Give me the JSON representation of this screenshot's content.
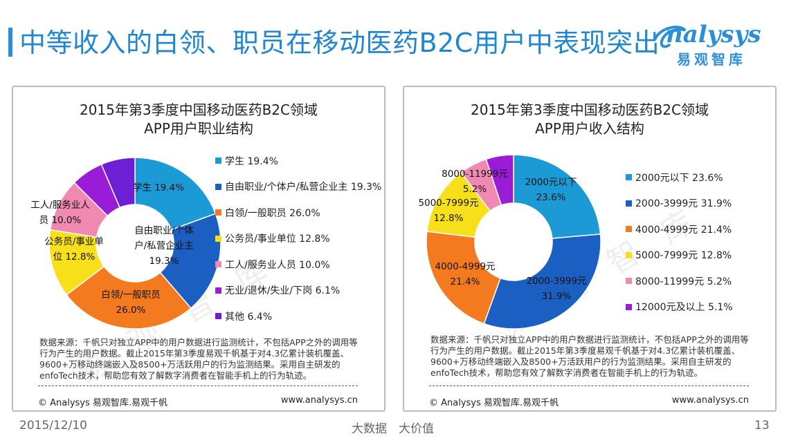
{
  "header": {
    "title": "中等收入的白领、职员在移动医药B2C用户中表现突出",
    "logo_word": "nalysys",
    "logo_cn": "易观智库"
  },
  "colors": {
    "c1": "#1c9ad6",
    "c2": "#1a5fc1",
    "c3": "#f47a20",
    "c4": "#f7e01a",
    "c5": "#f08ab3",
    "c6": "#9a1cd6",
    "c7": "#6d1fd6"
  },
  "chart_data": [
    {
      "type": "pie",
      "title_line1": "2015年第3季度中国移动医药B2C领域",
      "title_line2": "APP用户职业结构",
      "categories": [
        "学生",
        "自由职业/个体户/私营企业主",
        "白领/一般职员",
        "公务员/事业单位",
        "工人/服务业人员",
        "无业/退休/失业/下岗",
        "其他"
      ],
      "values": [
        19.4,
        19.3,
        26.0,
        12.8,
        10.0,
        6.1,
        6.4
      ],
      "legend": [
        "学生 19.4%",
        "自由职业/个体户/私营企业主 19.3%",
        "白领/一般职员 26.0%",
        "公务员/事业单位 12.8%",
        "工人/服务业人员 10.0%",
        "无业/退休/失业/下岗 6.1%",
        "其他 6.4%"
      ],
      "slice_labels": [
        [
          "学生 19.4%"
        ],
        [
          "自由职业/个体",
          "户/私营企业主",
          "19.3%"
        ],
        [
          "白领/一般职员",
          "26.0%"
        ],
        [
          "公务员/事业单",
          "位 12.8%"
        ],
        [
          "工人/服务业人",
          "员 10.0%"
        ],
        [],
        []
      ],
      "legend_position": "right"
    },
    {
      "type": "pie",
      "title_line1": "2015年第3季度中国移动医药B2C领域",
      "title_line2": "APP用户收入结构",
      "categories": [
        "2000元以下",
        "2000-3999元",
        "4000-4999元",
        "5000-7999元",
        "8000-11999元",
        "12000元及以上"
      ],
      "values": [
        23.6,
        31.9,
        21.4,
        12.8,
        5.2,
        5.1
      ],
      "legend": [
        "2000元以下 23.6%",
        "2000-3999元 31.9%",
        "4000-4999元 21.4%",
        "5000-7999元 12.8%",
        "8000-11999元 5.2%",
        "12000元及以上 5.1%"
      ],
      "slice_labels": [
        [
          "2000元以下",
          "23.6%"
        ],
        [
          "2000-3999元",
          "31.9%"
        ],
        [
          "4000-4999元",
          "21.4%"
        ],
        [
          "5000-7999元",
          "12.8%"
        ],
        [
          "8000-11999元",
          "5.2%"
        ],
        []
      ],
      "legend_position": "right"
    }
  ],
  "note": "数据来源：千帆只对独立APP中的用户数据进行监测统计，不包括APP之外的调用等行为产生的用户数据。截止2015年第3季度易观千帆基于对4.3亿累计装机覆盖、9600+万移动终端嵌入及8500+万活跃用户的行为监测结果。采用自主研发的enfoTech技术，帮助您有效了解数字消费者在智能手机上的行为轨迹。",
  "copyright": "© Analysys 易观智库.易观千帆",
  "site": "www.analysys.cn",
  "watermark": "易 观 智 库",
  "footer": {
    "date": "2015/12/10",
    "slogan": "大数据　大价值",
    "page": "13"
  }
}
